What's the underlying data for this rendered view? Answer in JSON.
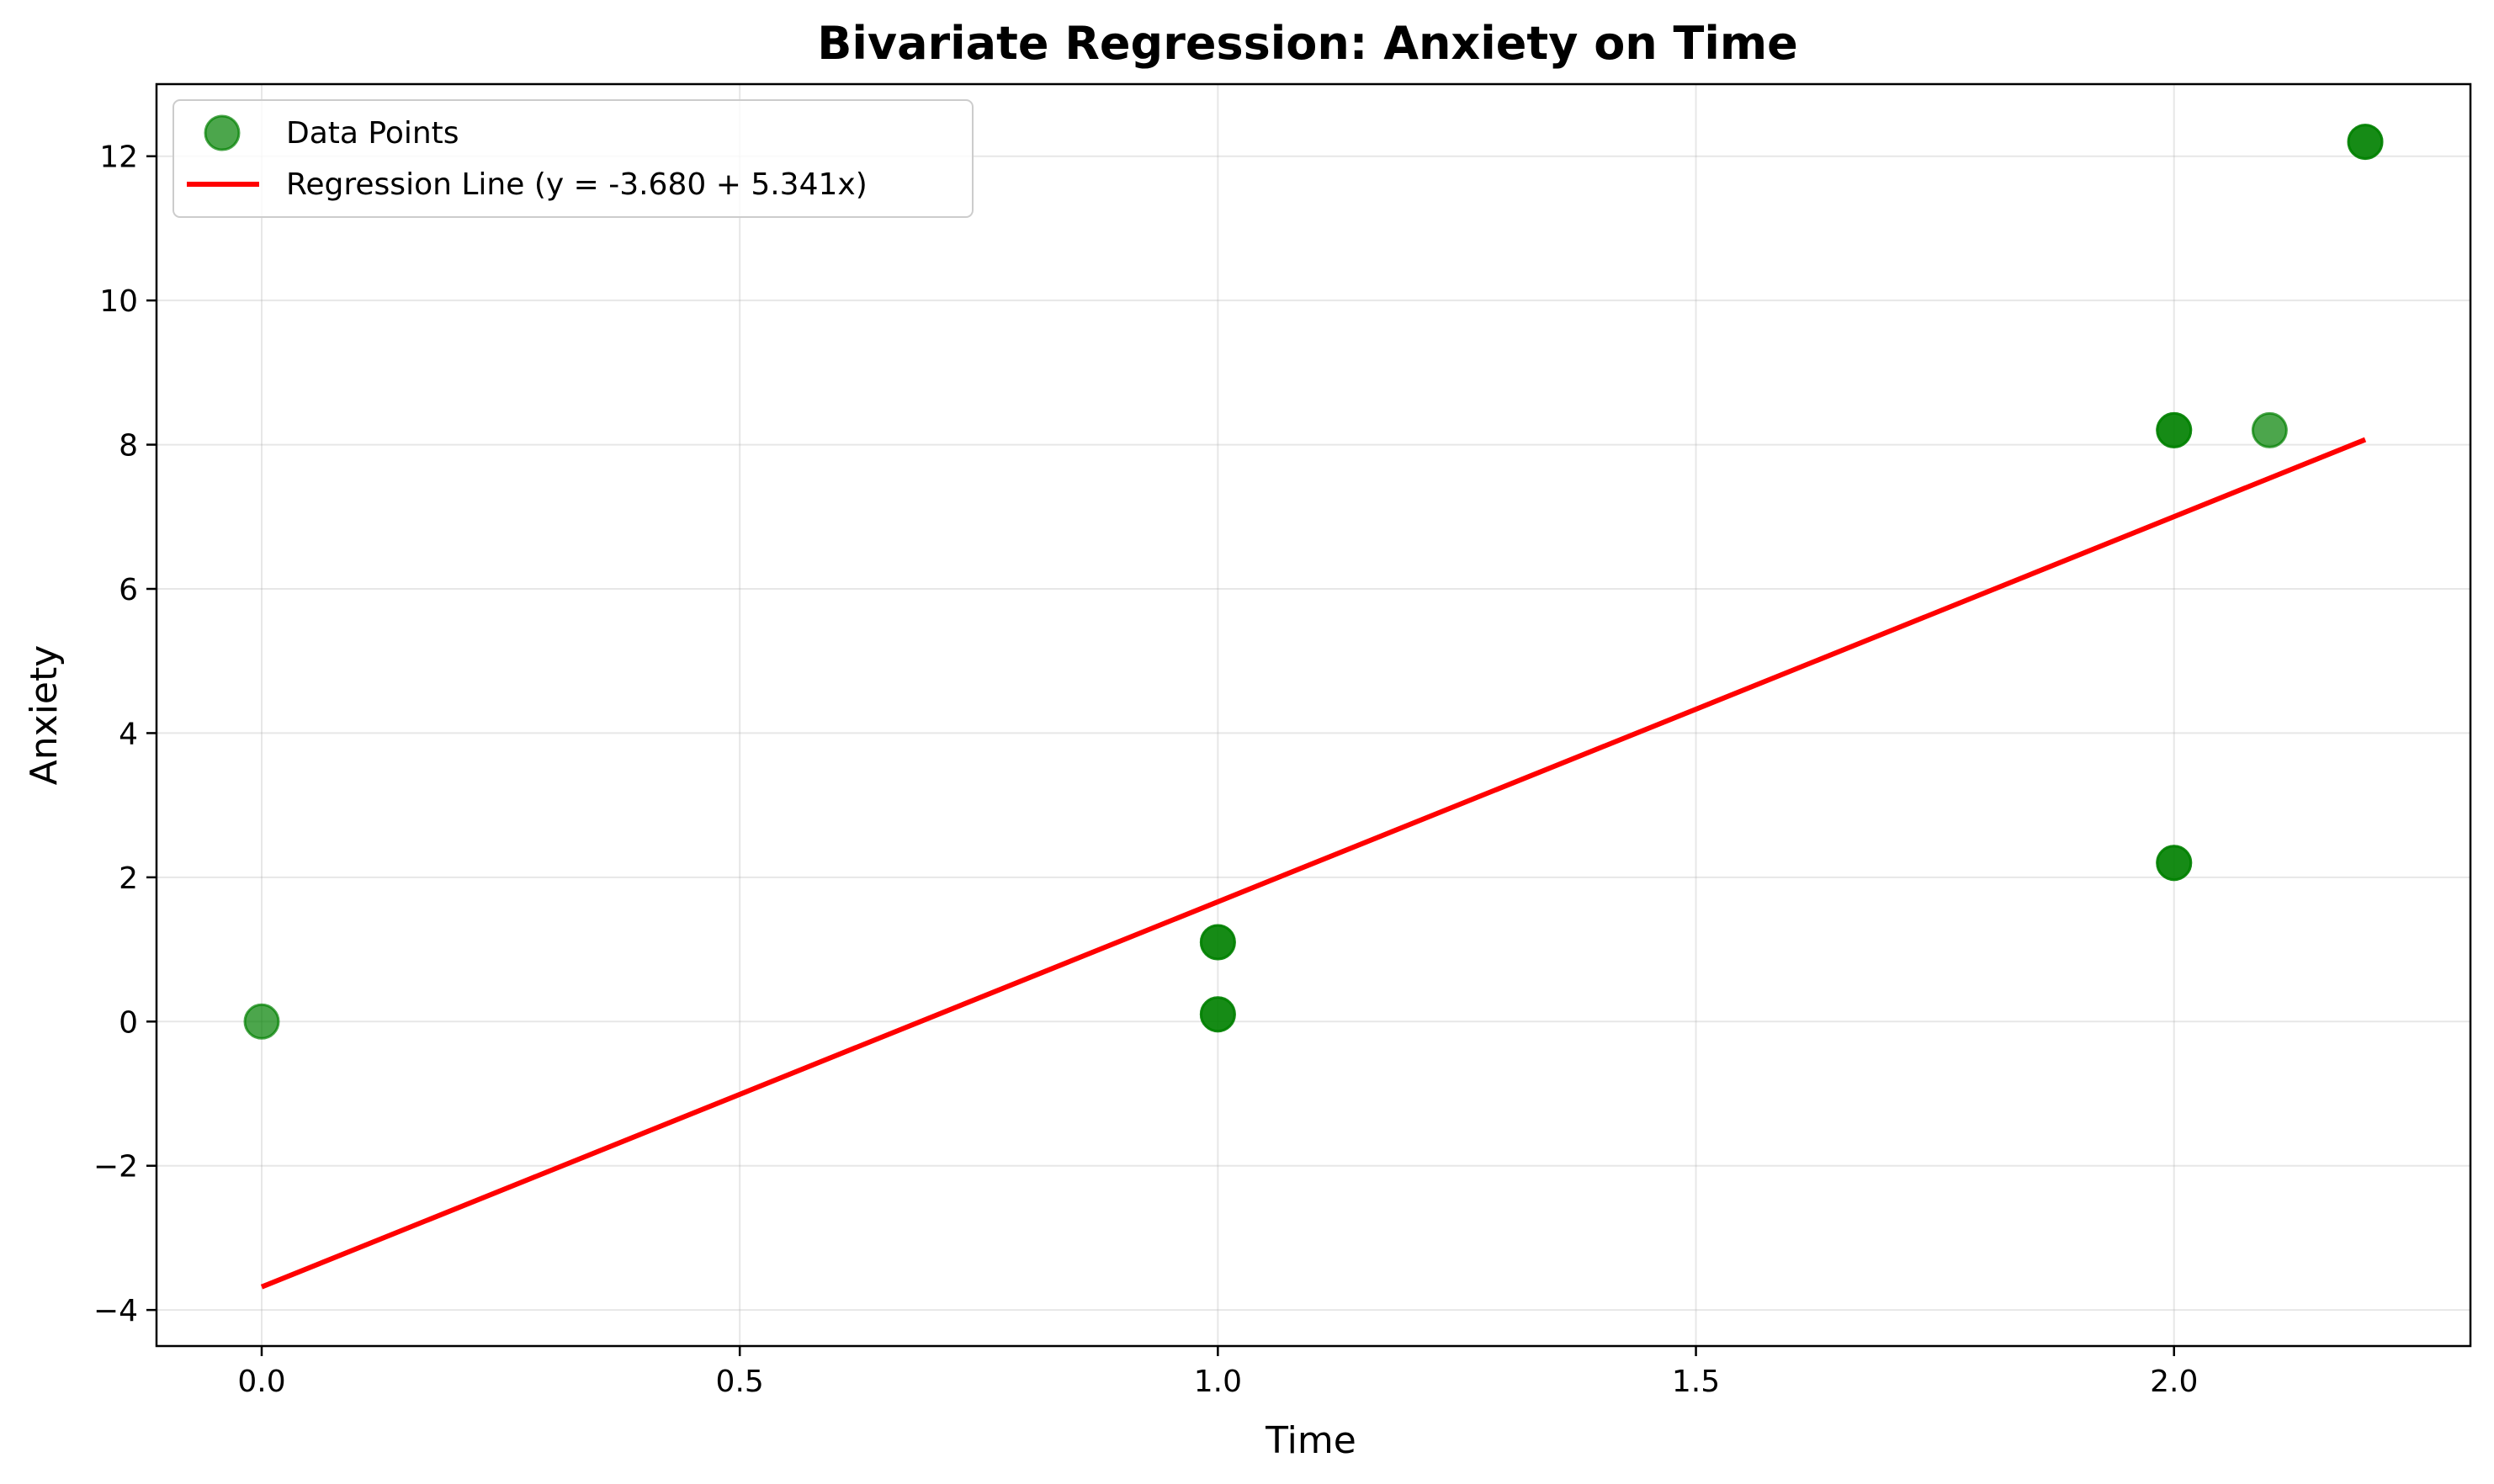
{
  "chart_data": {
    "type": "scatter",
    "title": "Bivariate Regression: Anxiety on Time",
    "xlabel": "Time",
    "ylabel": "Anxiety",
    "xlim": [
      -0.11,
      2.31
    ],
    "ylim": [
      -4.5,
      13.0
    ],
    "x_ticks": [
      0.0,
      0.5,
      1.0,
      1.5,
      2.0
    ],
    "x_tick_labels": [
      "0.0",
      "0.5",
      "1.0",
      "1.5",
      "2.0"
    ],
    "y_ticks": [
      -4,
      -2,
      0,
      2,
      4,
      6,
      8,
      10,
      12
    ],
    "y_tick_labels": [
      "−4",
      "−2",
      "0",
      "2",
      "4",
      "6",
      "8",
      "10",
      "12"
    ],
    "grid": true,
    "legend_position": "top-left",
    "series": [
      {
        "name": "Data Points",
        "type": "scatter",
        "color": "#008000",
        "opacity": 0.7,
        "x": [
          0.0,
          1.0,
          1.0,
          1.0,
          1.0,
          2.0,
          2.0,
          2.0,
          2.0,
          2.1,
          2.2,
          2.2
        ],
        "y": [
          0.0,
          1.1,
          1.1,
          0.1,
          0.1,
          8.2,
          8.2,
          2.2,
          2.2,
          8.2,
          12.2,
          12.2
        ]
      },
      {
        "name": "Regression Line (y = -3.680 + 5.341x)",
        "type": "line",
        "color": "#ff0000",
        "intercept": -3.68,
        "slope": 5.341,
        "x_range": [
          0.0,
          2.2
        ]
      }
    ]
  }
}
